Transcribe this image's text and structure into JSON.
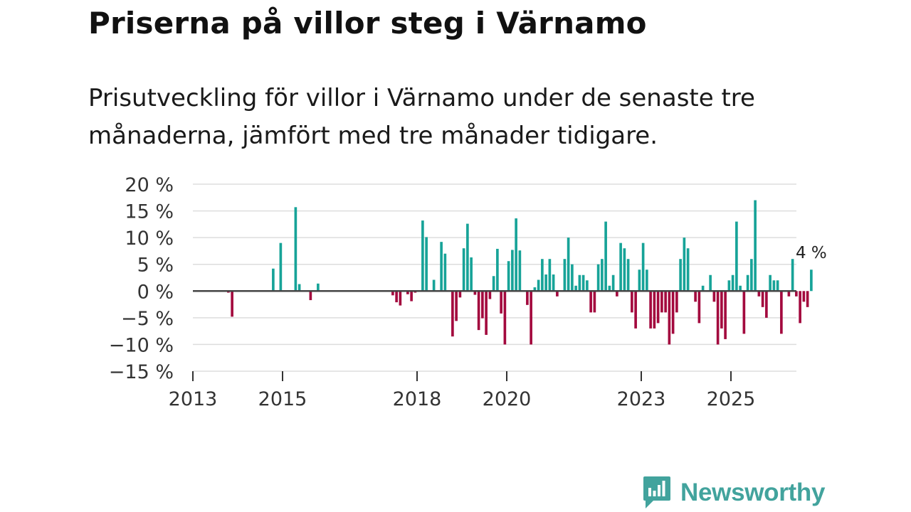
{
  "title": "Priserna på villor steg i Värnamo",
  "subtitle": "Prisutveckling för villor i Värnamo under de senaste tre månaderna, jämfört med tre månader tidigare.",
  "brand": {
    "name": "Newsworthy",
    "icon": "newsworthy-logo-icon"
  },
  "colors": {
    "positive": "#17a398",
    "negative": "#a3093e",
    "grid": "#dddddd",
    "zero": "#444444",
    "brand": "#42a39d"
  },
  "chart_data": {
    "type": "bar",
    "title": "Priserna på villor steg i Värnamo",
    "xlabel": "",
    "ylabel": "",
    "ylim": [
      -15,
      20
    ],
    "yticks": [
      20,
      15,
      10,
      5,
      0,
      -5,
      -10,
      -15
    ],
    "ytick_labels": [
      "20 %",
      "15 %",
      "10 %",
      "5 %",
      "0 %",
      "−5 %",
      "−10 %",
      "−15 %"
    ],
    "xticks": [
      {
        "year": 2013,
        "label": "2013"
      },
      {
        "year": 2015,
        "label": "2015"
      },
      {
        "year": 2018,
        "label": "2018"
      },
      {
        "year": 2020,
        "label": "2020"
      },
      {
        "year": 2023,
        "label": "2023"
      },
      {
        "year": 2025,
        "label": "2025"
      }
    ],
    "start": {
      "year": 2013,
      "month": 1
    },
    "annotation": {
      "text": "4 %"
    },
    "values": [
      0,
      0,
      0,
      0,
      0,
      0,
      0,
      0,
      0,
      -0.3,
      -4.8,
      0,
      0,
      0,
      0,
      0,
      0,
      0,
      0,
      0,
      0,
      4.2,
      0,
      9,
      0,
      0,
      0,
      15.7,
      1.3,
      0,
      0,
      -1.7,
      0,
      1.4,
      0,
      0,
      0,
      0,
      0,
      0,
      0,
      0,
      0,
      0,
      0,
      0,
      0,
      0,
      0,
      0,
      0,
      0,
      0,
      -0.8,
      -2.1,
      -2.7,
      0,
      -0.6,
      -1.9,
      -0.3,
      0,
      13.2,
      10.1,
      0,
      2.1,
      0,
      9.2,
      7,
      0,
      -8.5,
      -5.6,
      -1.2,
      8,
      12.6,
      6.3,
      -0.7,
      -7.3,
      -5.1,
      -8.2,
      -1.5,
      2.8,
      7.9,
      -4.2,
      -10,
      5.6,
      7.7,
      13.6,
      7.6,
      0,
      -2.6,
      -10,
      0.7,
      2.1,
      6,
      3.1,
      6,
      3.1,
      -1,
      0,
      6,
      10,
      5,
      1,
      3,
      3,
      2,
      -4,
      -4,
      5,
      6,
      13,
      1,
      3,
      -1,
      9,
      8,
      6,
      -4,
      -7,
      4,
      9,
      4,
      -7,
      -7,
      -6,
      -4,
      -4,
      -10,
      -8,
      -4,
      6,
      10,
      8,
      0,
      -2,
      -6,
      1,
      0,
      3,
      -2,
      -10,
      -7,
      -9,
      2,
      3,
      13,
      1,
      -8,
      3,
      6,
      17,
      -1,
      -3,
      -5,
      3,
      2,
      2,
      -8,
      0,
      -1,
      6,
      -1,
      -6,
      -2,
      -3,
      4
    ]
  }
}
